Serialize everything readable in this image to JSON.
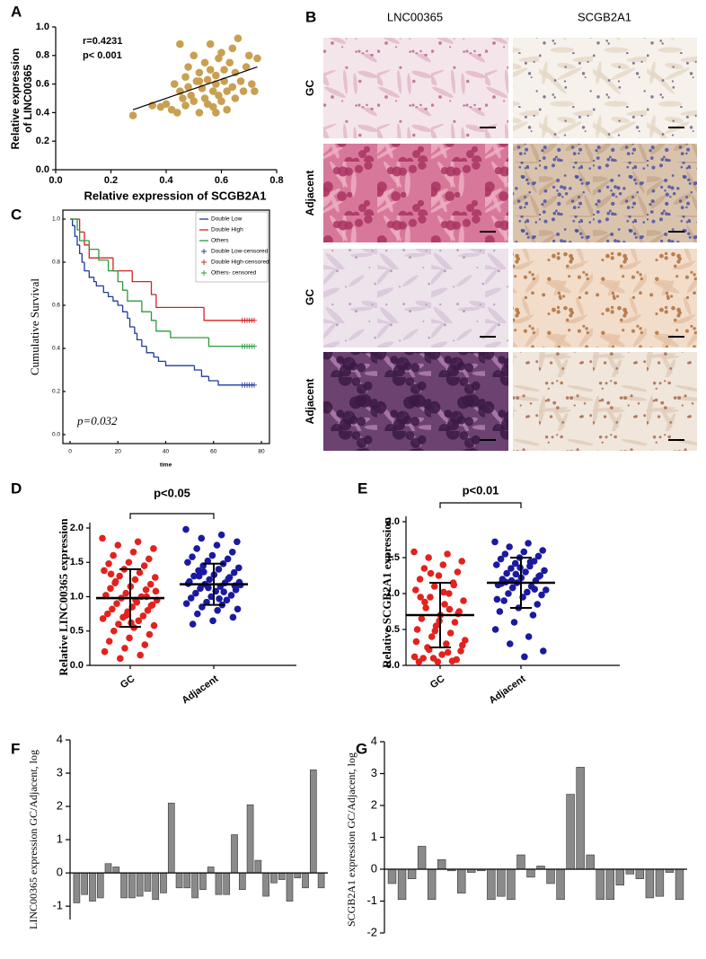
{
  "image_panel": {
    "label": "B",
    "columns": [
      "LNC00365",
      "SCGB2A1"
    ],
    "rows": [
      "GC",
      "Adjacent",
      "GC",
      "Adjacent"
    ]
  },
  "chart_data": [
    {
      "type": "scatter",
      "label": "A",
      "color": "#c9a052",
      "x": [
        0.28,
        0.35,
        0.38,
        0.4,
        0.42,
        0.43,
        0.44,
        0.45,
        0.46,
        0.47,
        0.47,
        0.48,
        0.48,
        0.49,
        0.5,
        0.5,
        0.51,
        0.52,
        0.52,
        0.53,
        0.54,
        0.54,
        0.55,
        0.55,
        0.56,
        0.56,
        0.57,
        0.57,
        0.58,
        0.58,
        0.59,
        0.59,
        0.6,
        0.6,
        0.61,
        0.61,
        0.62,
        0.62,
        0.63,
        0.64,
        0.64,
        0.65,
        0.65,
        0.66,
        0.67,
        0.68,
        0.69,
        0.7,
        0.71,
        0.72,
        0.73,
        0.45,
        0.52,
        0.58
      ],
      "values": [
        0.38,
        0.45,
        0.44,
        0.46,
        0.42,
        0.6,
        0.4,
        0.55,
        0.5,
        0.65,
        0.45,
        0.72,
        0.58,
        0.52,
        0.8,
        0.48,
        0.62,
        0.68,
        0.4,
        0.57,
        0.75,
        0.5,
        0.46,
        0.63,
        0.88,
        0.7,
        0.55,
        0.44,
        0.66,
        0.6,
        0.78,
        0.52,
        0.82,
        0.48,
        0.7,
        0.62,
        0.55,
        0.42,
        0.75,
        0.85,
        0.58,
        0.68,
        0.5,
        0.92,
        0.62,
        0.55,
        0.72,
        0.8,
        0.6,
        0.55,
        0.78,
        0.88,
        0.62,
        0.4
      ],
      "fit": {
        "x": [
          0.28,
          0.73
        ],
        "values": [
          0.42,
          0.72
        ]
      },
      "annotations": [
        "r=0.4231",
        "p< 0.001"
      ],
      "xlabel": "Relative expression of SCGB2A1",
      "ylabel": [
        "Relative expression",
        "of LINC00365"
      ],
      "xlim": [
        0,
        0.8
      ],
      "xticks": [
        {
          "value": 0,
          "label": "0.0"
        },
        0.2,
        0.4,
        0.6,
        0.8
      ],
      "ylim": [
        0,
        1
      ],
      "yticks": [
        {
          "value": 0,
          "label": "0.0"
        },
        0.2,
        0.4,
        0.6,
        0.8,
        {
          "value": 1,
          "label": "1.0"
        }
      ]
    },
    {
      "type": "survival",
      "label": "C",
      "ylabel": "Cumulative Survival",
      "xlabel": "time",
      "annotation": "p=0.032",
      "xlim": [
        0,
        80
      ],
      "xticks": [
        0,
        20,
        40,
        60,
        80
      ],
      "ylim": [
        0,
        1
      ],
      "yticks": [
        {
          "value": 0,
          "label": "0.0"
        },
        0.2,
        0.4,
        0.6,
        0.8,
        {
          "value": 1,
          "label": "1.0"
        }
      ],
      "series": [
        {
          "name": "Double Low",
          "color": "#1f3a9a",
          "x": [
            0,
            1,
            2,
            3,
            4,
            5,
            6,
            8,
            10,
            11,
            14,
            16,
            18,
            20,
            22,
            24,
            25,
            27,
            28,
            30,
            32,
            35,
            37,
            40,
            52,
            55,
            58,
            62,
            77
          ],
          "values": [
            1,
            0.97,
            0.92,
            0.88,
            0.84,
            0.8,
            0.76,
            0.73,
            0.71,
            0.69,
            0.66,
            0.64,
            0.62,
            0.6,
            0.57,
            0.54,
            0.5,
            0.47,
            0.44,
            0.41,
            0.38,
            0.36,
            0.34,
            0.32,
            0.3,
            0.27,
            0.25,
            0.23,
            0.23
          ]
        },
        {
          "name": "Double High",
          "color": "#d42222",
          "x": [
            0,
            4,
            6,
            8,
            18,
            26,
            34,
            36,
            56,
            77
          ],
          "values": [
            1,
            0.94,
            0.88,
            0.82,
            0.76,
            0.71,
            0.65,
            0.59,
            0.53,
            0.53
          ]
        },
        {
          "name": "Others",
          "color": "#2a9a3c",
          "x": [
            0,
            3,
            4,
            8,
            12,
            16,
            20,
            22,
            24,
            30,
            34,
            36,
            42,
            58,
            77
          ],
          "values": [
            1,
            0.95,
            0.9,
            0.86,
            0.81,
            0.76,
            0.71,
            0.67,
            0.62,
            0.57,
            0.53,
            0.48,
            0.45,
            0.41,
            0.41
          ]
        },
        {
          "name": "Double Low-censored",
          "color": "#1f3a9a",
          "censored": true,
          "x": [
            72,
            73,
            74,
            75,
            76,
            77
          ],
          "values": [
            0.23,
            0.23,
            0.23,
            0.23,
            0.23,
            0.23
          ]
        },
        {
          "name": "Double High-censored",
          "color": "#d42222",
          "censored": true,
          "x": [
            72,
            73,
            74,
            75,
            76,
            77
          ],
          "values": [
            0.53,
            0.53,
            0.53,
            0.53,
            0.53,
            0.53
          ]
        },
        {
          "name": "Others- censored",
          "color": "#2a9a3c",
          "censored": true,
          "x": [
            72,
            73,
            74,
            75,
            76,
            77
          ],
          "values": [
            0.41,
            0.41,
            0.41,
            0.41,
            0.41,
            0.41
          ]
        }
      ]
    },
    {
      "type": "dot",
      "label": "D",
      "ylabel": "Relative LINC00365 expression",
      "annotation": "p<0.05",
      "ylim": [
        0,
        2
      ],
      "yticks": [
        {
          "value": 0,
          "label": "0.0"
        },
        0.5,
        {
          "value": 1,
          "label": "1.0"
        },
        1.5,
        {
          "value": 2,
          "label": "2.0"
        }
      ],
      "categories": [
        "GC",
        "Adjacent"
      ],
      "groups": [
        {
          "color": "#e3221d",
          "mean": 0.98,
          "sd": 0.42,
          "values": [
            1.85,
            1.8,
            1.75,
            1.7,
            1.65,
            1.6,
            1.55,
            1.5,
            1.48,
            1.45,
            1.4,
            1.38,
            1.35,
            1.3,
            1.28,
            1.25,
            1.2,
            1.18,
            1.15,
            1.12,
            1.1,
            1.05,
            1.02,
            1.0,
            0.98,
            0.95,
            0.92,
            0.9,
            0.88,
            0.85,
            0.82,
            0.8,
            0.78,
            0.75,
            0.72,
            0.7,
            0.68,
            0.65,
            0.6,
            0.58,
            0.55,
            0.5,
            0.45,
            0.4,
            0.35,
            0.3,
            0.25,
            0.2,
            0.15,
            0.1,
            1.08,
            0.95,
            1.22,
            0.87,
            0.62,
            1.33,
            1.0,
            0.73
          ]
        },
        {
          "color": "#1a1aa0",
          "mean": 1.18,
          "sd": 0.3,
          "values": [
            1.98,
            1.9,
            1.85,
            1.8,
            1.75,
            1.7,
            1.65,
            1.6,
            1.58,
            1.55,
            1.52,
            1.5,
            1.48,
            1.45,
            1.42,
            1.4,
            1.38,
            1.35,
            1.32,
            1.3,
            1.28,
            1.25,
            1.22,
            1.2,
            1.18,
            1.17,
            1.15,
            1.12,
            1.1,
            1.08,
            1.05,
            1.02,
            1.0,
            0.98,
            0.95,
            0.92,
            0.9,
            0.88,
            0.85,
            0.82,
            0.8,
            0.75,
            0.7,
            0.65,
            0.6,
            1.26,
            1.13,
            1.19,
            1.07,
            1.36,
            1.21,
            0.97,
            1.3,
            1.16
          ]
        }
      ]
    },
    {
      "type": "dot",
      "label": "E",
      "ylabel": "Relative SCGB2A1 expression",
      "annotation": "p<0.01",
      "ylim": [
        0,
        2
      ],
      "yticks": [
        {
          "value": 0,
          "label": "0.0"
        },
        0.5,
        {
          "value": 1,
          "label": "1.0"
        },
        1.5,
        {
          "value": 2,
          "label": "2.0"
        }
      ],
      "categories": [
        "GC",
        "Adjacent"
      ],
      "groups": [
        {
          "color": "#e3221d",
          "mean": 0.7,
          "sd": 0.45,
          "values": [
            1.58,
            1.55,
            1.5,
            1.45,
            1.4,
            1.35,
            1.3,
            1.25,
            1.2,
            1.15,
            1.1,
            1.05,
            1.0,
            0.95,
            0.9,
            0.85,
            0.8,
            0.75,
            0.7,
            0.65,
            0.6,
            0.55,
            0.5,
            0.45,
            0.4,
            0.35,
            0.3,
            0.25,
            0.2,
            0.15,
            0.1,
            0.08,
            0.05,
            0.05,
            0.06,
            0.1,
            0.12,
            0.18,
            0.22,
            0.28,
            1.02,
            0.88,
            0.72,
            0.62,
            0.95,
            1.12,
            0.48,
            0.33,
            0.78,
            1.28
          ]
        },
        {
          "color": "#1a1aa0",
          "mean": 1.15,
          "sd": 0.35,
          "values": [
            1.72,
            1.7,
            1.65,
            1.6,
            1.58,
            1.55,
            1.52,
            1.5,
            1.48,
            1.45,
            1.42,
            1.4,
            1.38,
            1.35,
            1.32,
            1.3,
            1.28,
            1.25,
            1.22,
            1.2,
            1.18,
            1.15,
            1.12,
            1.1,
            1.08,
            1.05,
            1.02,
            1.0,
            0.98,
            0.95,
            0.9,
            0.85,
            0.8,
            0.75,
            0.7,
            0.6,
            0.5,
            0.4,
            0.3,
            0.2,
            0.12,
            1.16,
            1.24,
            1.36,
            1.14,
            1.06,
            1.27,
            0.92,
            1.44,
            1.18
          ]
        }
      ]
    },
    {
      "type": "bar",
      "label": "F",
      "ylabel": "LINC00365 expression GC/Adjacent, log",
      "color": "#8a8a8a",
      "ylim": [
        -1.4,
        4
      ],
      "yticks": [
        -1,
        0,
        1,
        2,
        3,
        4
      ],
      "values": [
        -0.9,
        -0.65,
        -0.85,
        -0.75,
        0.28,
        0.18,
        -0.75,
        -0.75,
        -0.7,
        -0.55,
        -0.8,
        -0.6,
        2.1,
        -0.45,
        -0.45,
        -0.75,
        -0.5,
        0.18,
        -0.65,
        -0.65,
        1.15,
        -0.5,
        2.05,
        0.38,
        -0.7,
        -0.3,
        -0.2,
        -0.85,
        -0.15,
        -0.45,
        3.1,
        -0.45
      ]
    },
    {
      "type": "bar",
      "label": "G",
      "ylabel": "SCGB2A1 expression GC/Adjacent, log",
      "color": "#8a8a8a",
      "ylim": [
        -2,
        4
      ],
      "yticks": [
        -2,
        -1,
        0,
        1,
        2,
        3,
        4
      ],
      "values": [
        -0.45,
        -0.95,
        -0.3,
        0.72,
        -0.95,
        0.3,
        -0.05,
        -0.75,
        -0.1,
        -0.05,
        -0.95,
        -0.85,
        -0.95,
        0.45,
        -0.25,
        0.1,
        -0.45,
        -0.95,
        2.35,
        3.2,
        0.45,
        -0.95,
        -0.95,
        -0.5,
        -0.15,
        -0.3,
        -0.9,
        -0.85,
        -0.1,
        -0.95
      ]
    }
  ]
}
